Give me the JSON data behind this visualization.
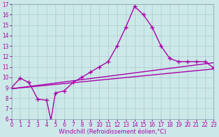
{
  "background_color": "#cce8e8",
  "grid_color": "#aacccc",
  "line_color": "#aa00aa",
  "xlim": [
    0,
    23
  ],
  "ylim": [
    6,
    17
  ],
  "xticks": [
    0,
    1,
    2,
    3,
    4,
    5,
    6,
    7,
    8,
    9,
    10,
    11,
    12,
    13,
    14,
    15,
    16,
    17,
    18,
    19,
    20,
    21,
    22,
    23
  ],
  "yticks": [
    6,
    7,
    8,
    9,
    10,
    11,
    12,
    13,
    14,
    15,
    16,
    17
  ],
  "xlabel": "Windchill (Refroidissement éolien,°C)",
  "curve1_x": [
    0,
    1,
    2,
    3,
    4,
    4.5,
    5,
    6,
    7,
    8,
    9,
    10,
    11,
    12,
    13,
    14,
    15,
    16,
    17,
    18,
    19,
    20,
    21,
    22,
    23
  ],
  "curve1_y": [
    9.0,
    9.9,
    9.5,
    7.9,
    7.8,
    5.9,
    8.5,
    8.7,
    9.5,
    10.0,
    10.5,
    11.0,
    11.5,
    13.0,
    14.8,
    16.8,
    16.0,
    14.8,
    13.0,
    11.8,
    11.5,
    11.5,
    11.5,
    11.5,
    10.9
  ],
  "curve2_x": [
    0,
    23
  ],
  "curve2_y": [
    8.9,
    10.8
  ],
  "curve3_x": [
    0,
    23
  ],
  "curve3_y": [
    8.9,
    11.4
  ],
  "marker": "+",
  "markersize": 4,
  "linewidth": 1.0,
  "tick_fontsize": 5.5,
  "xlabel_fontsize": 6.0
}
